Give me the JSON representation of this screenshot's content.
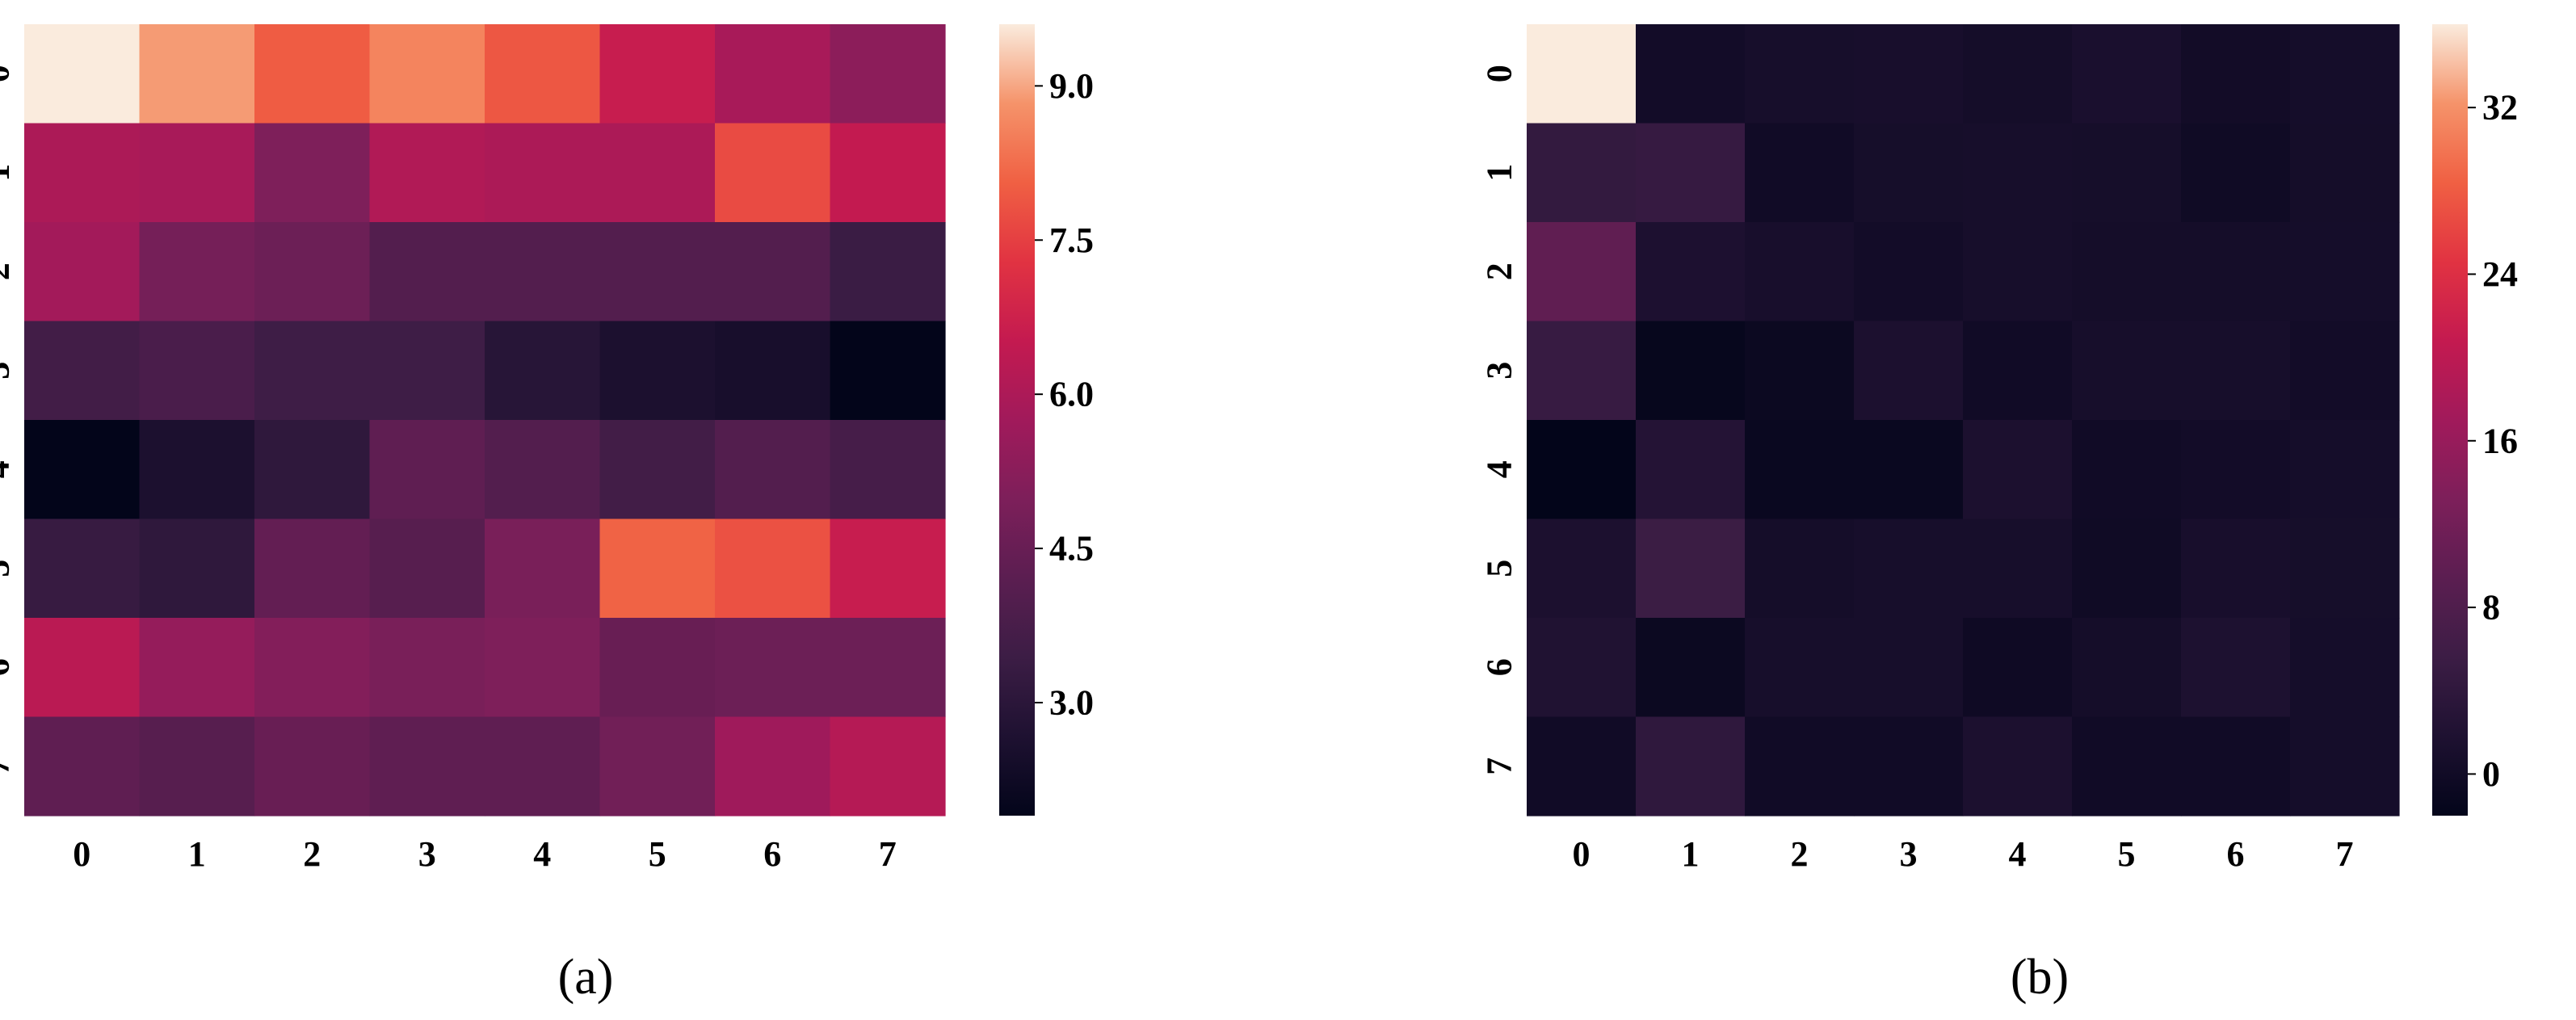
{
  "chart_data": [
    {
      "type": "heatmap",
      "caption": "(a)",
      "rows": [
        "0",
        "1",
        "2",
        "3",
        "4",
        "5",
        "6",
        "7"
      ],
      "columns": [
        "0",
        "1",
        "2",
        "3",
        "4",
        "5",
        "6",
        "7"
      ],
      "colormap": "rocket",
      "vmin": 1.9,
      "vmax": 9.6,
      "colorbar_ticks": [
        "3.0",
        "4.5",
        "6.0",
        "7.5",
        "9.0"
      ],
      "values": [
        [
          9.6,
          8.9,
          8.0,
          8.6,
          7.9,
          6.6,
          5.9,
          5.3
        ],
        [
          6.0,
          5.9,
          5.0,
          6.1,
          6.0,
          6.0,
          7.7,
          6.5
        ],
        [
          5.8,
          4.8,
          4.6,
          4.0,
          4.0,
          4.0,
          4.0,
          3.4
        ],
        [
          3.6,
          3.8,
          3.5,
          3.5,
          2.9,
          2.6,
          2.5,
          1.9
        ],
        [
          1.9,
          2.6,
          3.1,
          4.3,
          4.0,
          3.6,
          4.0,
          3.7
        ],
        [
          3.3,
          3.1,
          4.4,
          4.1,
          4.9,
          8.1,
          7.8,
          6.6
        ],
        [
          6.3,
          5.5,
          5.1,
          4.9,
          5.0,
          4.5,
          4.6,
          4.6
        ],
        [
          4.3,
          4.1,
          4.5,
          4.3,
          4.3,
          4.7,
          5.7,
          6.2
        ]
      ]
    },
    {
      "type": "heatmap",
      "caption": "(b)",
      "rows": [
        "0",
        "1",
        "2",
        "3",
        "4",
        "5",
        "6",
        "7"
      ],
      "columns": [
        "0",
        "1",
        "2",
        "3",
        "4",
        "5",
        "6",
        "7"
      ],
      "colormap": "rocket",
      "vmin": -2,
      "vmax": 36,
      "colorbar_ticks": [
        "0",
        "8",
        "16",
        "24",
        "32"
      ],
      "values": [
        [
          36.0,
          0.3,
          0.8,
          1.0,
          0.5,
          1.3,
          0.2,
          0.6
        ],
        [
          4.5,
          4.8,
          0.0,
          0.7,
          0.8,
          0.7,
          -0.2,
          0.5
        ],
        [
          10.0,
          1.6,
          1.0,
          0.3,
          0.8,
          0.5,
          0.5,
          0.6
        ],
        [
          5.0,
          -1.5,
          -0.8,
          1.5,
          0.0,
          0.8,
          0.8,
          0.3
        ],
        [
          -2.0,
          2.5,
          -1.0,
          -1.0,
          1.5,
          0.0,
          0.3,
          0.6
        ],
        [
          1.5,
          5.5,
          0.5,
          0.8,
          0.8,
          -0.2,
          1.0,
          0.7
        ],
        [
          2.0,
          -0.8,
          0.8,
          0.8,
          -0.3,
          0.5,
          1.7,
          0.6
        ],
        [
          0.0,
          4.0,
          0.0,
          0.0,
          1.5,
          0.0,
          0.0,
          0.6
        ]
      ]
    }
  ]
}
